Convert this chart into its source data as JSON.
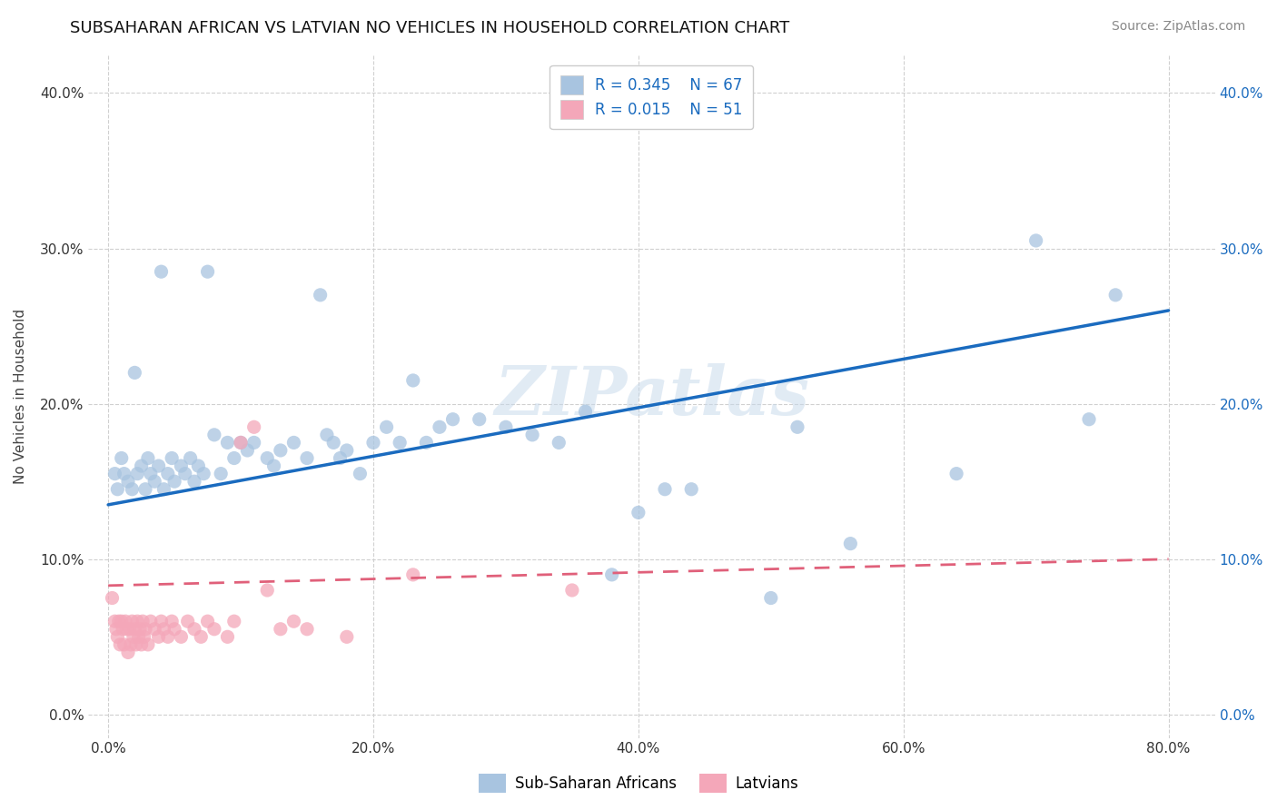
{
  "title": "SUBSAHARAN AFRICAN VS LATVIAN NO VEHICLES IN HOUSEHOLD CORRELATION CHART",
  "source": "Source: ZipAtlas.com",
  "ylabel": "No Vehicles in Household",
  "xlim": [
    0.0,
    0.8
  ],
  "ylim": [
    0.0,
    0.4
  ],
  "blue_color": "#a8c4e0",
  "blue_line_color": "#1a6bbf",
  "pink_color": "#f4a7b9",
  "pink_line_color": "#e0607a",
  "legend1_R": "0.345",
  "legend1_N": "67",
  "legend2_R": "0.015",
  "legend2_N": "51",
  "watermark": "ZIPatlas",
  "blue_scatter_x": [
    0.005,
    0.007,
    0.01,
    0.012,
    0.015,
    0.018,
    0.02,
    0.022,
    0.025,
    0.028,
    0.03,
    0.032,
    0.035,
    0.038,
    0.04,
    0.042,
    0.045,
    0.048,
    0.05,
    0.055,
    0.058,
    0.062,
    0.065,
    0.068,
    0.072,
    0.075,
    0.08,
    0.085,
    0.09,
    0.095,
    0.1,
    0.105,
    0.11,
    0.12,
    0.125,
    0.13,
    0.14,
    0.15,
    0.16,
    0.165,
    0.17,
    0.175,
    0.18,
    0.19,
    0.2,
    0.21,
    0.22,
    0.23,
    0.24,
    0.25,
    0.26,
    0.28,
    0.3,
    0.32,
    0.34,
    0.36,
    0.38,
    0.4,
    0.42,
    0.44,
    0.5,
    0.52,
    0.56,
    0.64,
    0.7,
    0.74,
    0.76
  ],
  "blue_scatter_y": [
    0.155,
    0.145,
    0.165,
    0.155,
    0.15,
    0.145,
    0.22,
    0.155,
    0.16,
    0.145,
    0.165,
    0.155,
    0.15,
    0.16,
    0.285,
    0.145,
    0.155,
    0.165,
    0.15,
    0.16,
    0.155,
    0.165,
    0.15,
    0.16,
    0.155,
    0.285,
    0.18,
    0.155,
    0.175,
    0.165,
    0.175,
    0.17,
    0.175,
    0.165,
    0.16,
    0.17,
    0.175,
    0.165,
    0.27,
    0.18,
    0.175,
    0.165,
    0.17,
    0.155,
    0.175,
    0.185,
    0.175,
    0.215,
    0.175,
    0.185,
    0.19,
    0.19,
    0.185,
    0.18,
    0.175,
    0.195,
    0.09,
    0.13,
    0.145,
    0.145,
    0.075,
    0.185,
    0.11,
    0.155,
    0.305,
    0.19,
    0.27
  ],
  "pink_scatter_x": [
    0.003,
    0.005,
    0.006,
    0.007,
    0.008,
    0.009,
    0.01,
    0.011,
    0.012,
    0.013,
    0.014,
    0.015,
    0.016,
    0.017,
    0.018,
    0.019,
    0.02,
    0.021,
    0.022,
    0.023,
    0.024,
    0.025,
    0.026,
    0.027,
    0.028,
    0.03,
    0.032,
    0.035,
    0.038,
    0.04,
    0.042,
    0.045,
    0.048,
    0.05,
    0.055,
    0.06,
    0.065,
    0.07,
    0.075,
    0.08,
    0.09,
    0.095,
    0.1,
    0.11,
    0.12,
    0.13,
    0.14,
    0.15,
    0.18,
    0.23,
    0.35
  ],
  "pink_scatter_y": [
    0.075,
    0.06,
    0.055,
    0.05,
    0.06,
    0.045,
    0.06,
    0.055,
    0.045,
    0.06,
    0.055,
    0.04,
    0.055,
    0.045,
    0.06,
    0.05,
    0.055,
    0.045,
    0.06,
    0.05,
    0.055,
    0.045,
    0.06,
    0.05,
    0.055,
    0.045,
    0.06,
    0.055,
    0.05,
    0.06,
    0.055,
    0.05,
    0.06,
    0.055,
    0.05,
    0.06,
    0.055,
    0.05,
    0.06,
    0.055,
    0.05,
    0.06,
    0.175,
    0.185,
    0.08,
    0.055,
    0.06,
    0.055,
    0.05,
    0.09,
    0.08
  ],
  "blue_trend_x0": 0.0,
  "blue_trend_y0": 0.135,
  "blue_trend_x1": 0.8,
  "blue_trend_y1": 0.26,
  "pink_trend_x0": 0.0,
  "pink_trend_y0": 0.083,
  "pink_trend_x1": 0.8,
  "pink_trend_y1": 0.1
}
